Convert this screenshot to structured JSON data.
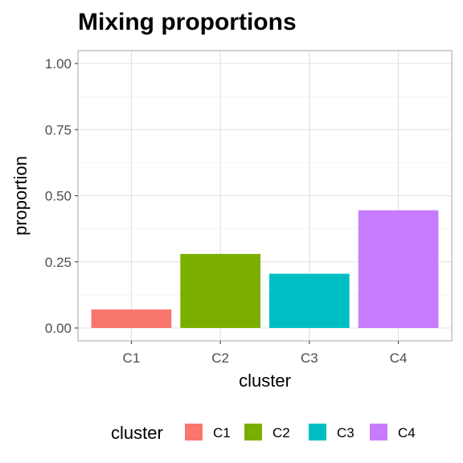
{
  "chart_data": {
    "type": "bar",
    "title": "Mixing proportions",
    "xlabel": "cluster",
    "ylabel": "proportion",
    "categories": [
      "C1",
      "C2",
      "C3",
      "C4"
    ],
    "values": [
      0.07,
      0.28,
      0.205,
      0.445
    ],
    "ylim": [
      0,
      1
    ],
    "yticks": [
      "0.00",
      "0.25",
      "0.50",
      "0.75",
      "1.00"
    ],
    "grid": true,
    "colors": [
      "#F8766D",
      "#7CAE00",
      "#00BFC4",
      "#C77CFF"
    ],
    "legend": {
      "title": "cluster",
      "position": "bottom",
      "entries": [
        "C1",
        "C2",
        "C3",
        "C4"
      ]
    }
  }
}
